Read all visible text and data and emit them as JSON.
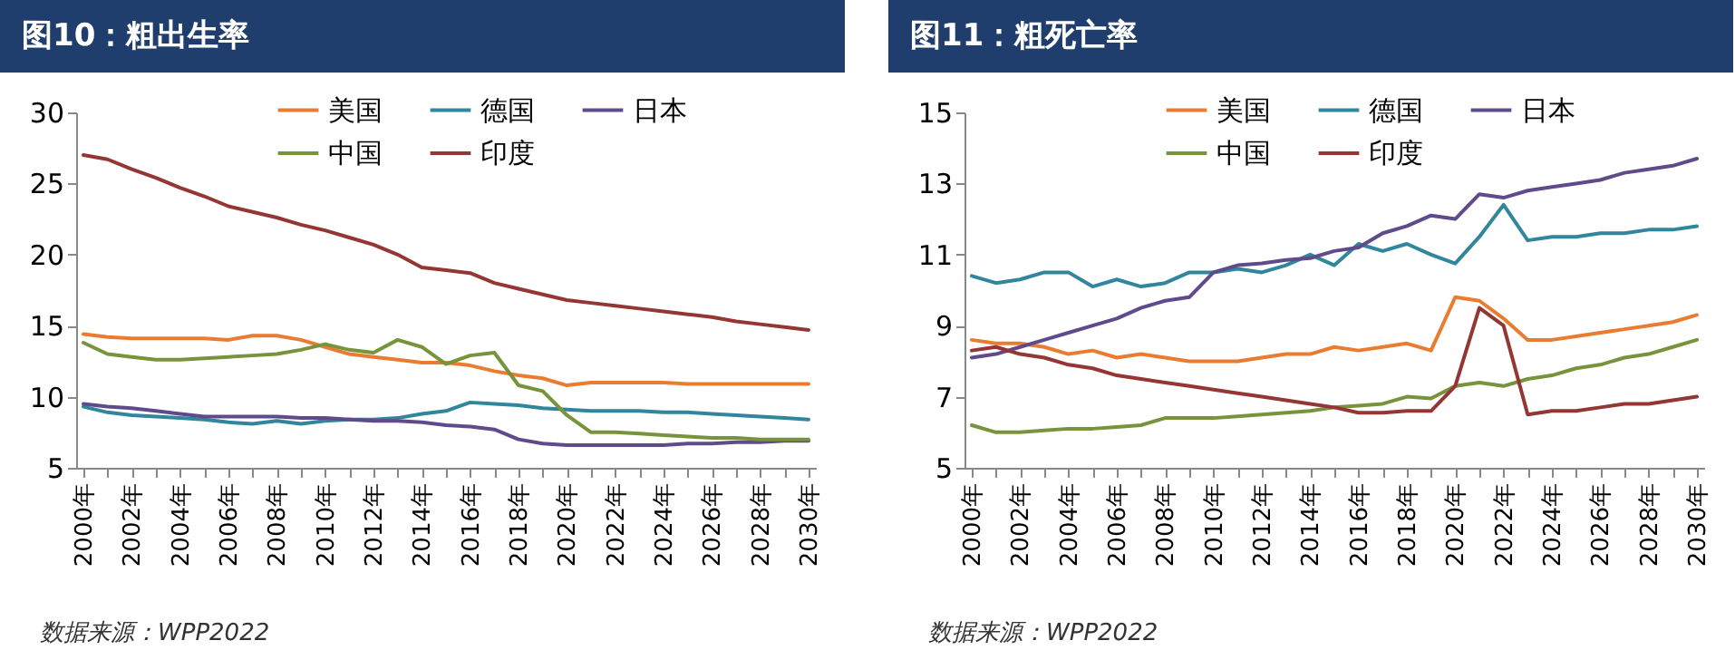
{
  "chart_data": [
    {
      "type": "line",
      "title": "图10：粗出生率",
      "categories": [
        "2000年",
        null,
        "2002年",
        null,
        "2004年",
        null,
        "2006年",
        null,
        "2008年",
        null,
        "2010年",
        null,
        "2012年",
        null,
        "2014年",
        null,
        "2016年",
        null,
        "2018年",
        null,
        "2020年",
        null,
        "2022年",
        null,
        "2024年",
        null,
        "2026年",
        null,
        "2028年",
        null,
        "2030年"
      ],
      "ylim": [
        5,
        30
      ],
      "yticks": [
        5,
        10,
        15,
        20,
        25,
        30
      ],
      "grid": false,
      "legend": "top",
      "series": [
        {
          "name": "美国",
          "color": "#e97c30",
          "values": [
            14.4,
            14.2,
            14.1,
            14.1,
            14.1,
            14.1,
            14.0,
            14.3,
            14.3,
            14.0,
            13.5,
            13.0,
            12.8,
            12.6,
            12.4,
            12.4,
            12.2,
            11.8,
            11.5,
            11.3,
            10.8,
            11.0,
            11.0,
            11.0,
            11.0,
            10.9,
            10.9,
            10.9,
            10.9,
            10.9,
            10.9
          ]
        },
        {
          "name": "德国",
          "color": "#31859c",
          "values": [
            9.3,
            8.9,
            8.7,
            8.6,
            8.5,
            8.4,
            8.2,
            8.1,
            8.3,
            8.1,
            8.3,
            8.4,
            8.4,
            8.5,
            8.8,
            9.0,
            9.6,
            9.5,
            9.4,
            9.2,
            9.1,
            9.0,
            9.0,
            9.0,
            8.9,
            8.9,
            8.8,
            8.7,
            8.6,
            8.5,
            8.4
          ]
        },
        {
          "name": "日本",
          "color": "#5f4b8b",
          "values": [
            9.5,
            9.3,
            9.2,
            9.0,
            8.8,
            8.6,
            8.6,
            8.6,
            8.6,
            8.5,
            8.5,
            8.4,
            8.3,
            8.3,
            8.2,
            8.0,
            7.9,
            7.7,
            7.0,
            6.7,
            6.6,
            6.6,
            6.6,
            6.6,
            6.6,
            6.7,
            6.7,
            6.8,
            6.8,
            6.9,
            6.9
          ]
        },
        {
          "name": "中国",
          "color": "#77933c",
          "values": [
            13.8,
            13.0,
            12.8,
            12.6,
            12.6,
            12.7,
            12.8,
            12.9,
            13.0,
            13.3,
            13.7,
            13.3,
            13.1,
            14.0,
            13.5,
            12.3,
            12.9,
            13.1,
            10.8,
            10.4,
            8.7,
            7.5,
            7.5,
            7.4,
            7.3,
            7.2,
            7.1,
            7.1,
            7.0,
            7.0,
            7.0
          ]
        },
        {
          "name": "印度",
          "color": "#943634",
          "values": [
            27.0,
            26.7,
            26.0,
            25.4,
            24.7,
            24.1,
            23.4,
            23.0,
            22.6,
            22.1,
            21.7,
            21.2,
            20.7,
            20.0,
            19.1,
            18.9,
            18.7,
            18.0,
            17.6,
            17.2,
            16.8,
            16.6,
            16.4,
            16.2,
            16.0,
            15.8,
            15.6,
            15.3,
            15.1,
            14.9,
            14.7
          ]
        }
      ],
      "annotations": [
        "数据来源：WPP2022"
      ]
    },
    {
      "type": "line",
      "title": "图11：粗死亡率",
      "categories": [
        "2000年",
        null,
        "2002年",
        null,
        "2004年",
        null,
        "2006年",
        null,
        "2008年",
        null,
        "2010年",
        null,
        "2012年",
        null,
        "2014年",
        null,
        "2016年",
        null,
        "2018年",
        null,
        "2020年",
        null,
        "2022年",
        null,
        "2024年",
        null,
        "2026年",
        null,
        "2028年",
        null,
        "2030年"
      ],
      "ylim": [
        5,
        15
      ],
      "yticks": [
        5,
        7,
        9,
        11,
        13,
        15
      ],
      "grid": false,
      "legend": "top",
      "series": [
        {
          "name": "美国",
          "color": "#e97c30",
          "values": [
            8.6,
            8.5,
            8.5,
            8.4,
            8.2,
            8.3,
            8.1,
            8.2,
            8.1,
            8.0,
            8.0,
            8.0,
            8.1,
            8.2,
            8.2,
            8.4,
            8.3,
            8.4,
            8.5,
            8.3,
            9.8,
            9.7,
            9.2,
            8.6,
            8.6,
            8.7,
            8.8,
            8.9,
            9.0,
            9.1,
            9.3
          ]
        },
        {
          "name": "德国",
          "color": "#31859c",
          "values": [
            10.4,
            10.2,
            10.3,
            10.5,
            10.5,
            10.1,
            10.3,
            10.1,
            10.2,
            10.5,
            10.5,
            10.6,
            10.5,
            10.7,
            11.0,
            10.7,
            11.3,
            11.1,
            11.3,
            11.0,
            10.75,
            11.5,
            12.4,
            11.4,
            11.5,
            11.5,
            11.6,
            11.6,
            11.7,
            11.7,
            11.8
          ]
        },
        {
          "name": "日本",
          "color": "#5f4b8b",
          "values": [
            8.1,
            8.2,
            8.4,
            8.6,
            8.8,
            9.0,
            9.2,
            9.5,
            9.7,
            9.8,
            10.5,
            10.7,
            10.75,
            10.85,
            10.9,
            11.1,
            11.2,
            11.6,
            11.8,
            12.1,
            12.0,
            12.7,
            12.6,
            12.8,
            12.9,
            13.0,
            13.1,
            13.3,
            13.4,
            13.5,
            13.7
          ]
        },
        {
          "name": "中国",
          "color": "#77933c",
          "values": [
            6.2,
            6.0,
            6.0,
            6.05,
            6.1,
            6.1,
            6.15,
            6.2,
            6.4,
            6.4,
            6.4,
            6.45,
            6.5,
            6.55,
            6.6,
            6.7,
            6.75,
            6.8,
            7.0,
            6.95,
            7.3,
            7.4,
            7.3,
            7.5,
            7.6,
            7.8,
            7.9,
            8.1,
            8.2,
            8.4,
            8.6
          ]
        },
        {
          "name": "印度",
          "color": "#943634",
          "values": [
            8.3,
            8.4,
            8.2,
            8.1,
            7.9,
            7.8,
            7.6,
            7.5,
            7.4,
            7.3,
            7.2,
            7.1,
            7.0,
            6.9,
            6.8,
            6.7,
            6.55,
            6.55,
            6.6,
            6.6,
            7.3,
            9.5,
            9.0,
            6.5,
            6.6,
            6.6,
            6.7,
            6.8,
            6.8,
            6.9,
            7.0
          ]
        }
      ],
      "annotations": [
        "数据来源：WPP2022"
      ]
    }
  ]
}
